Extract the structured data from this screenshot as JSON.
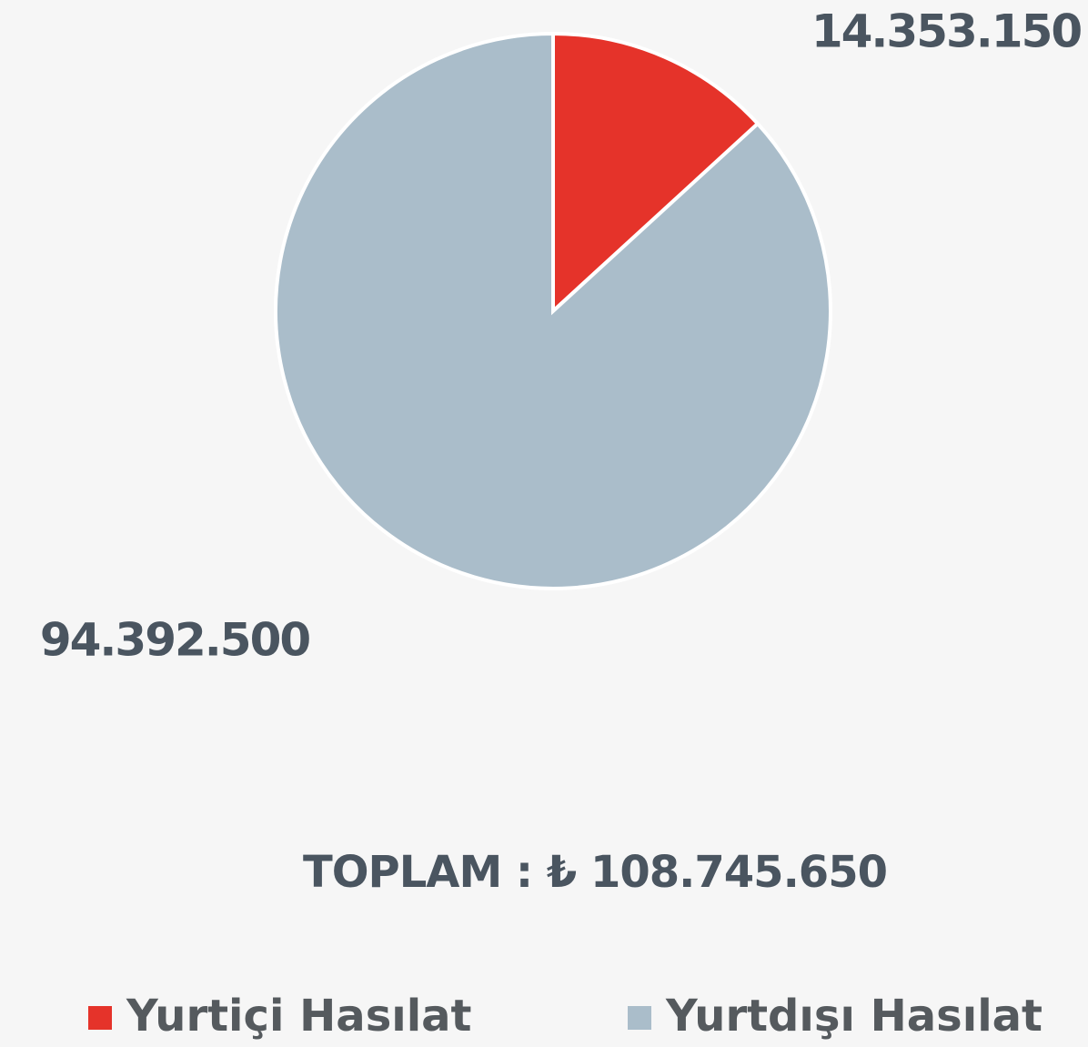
{
  "chart_data": {
    "type": "pie",
    "categories": [
      "Yurtiçi Hasılat",
      "Yurtdışı Hasılat"
    ],
    "values": [
      14353150,
      94392500
    ],
    "value_labels": [
      "14.353.150",
      "94.392.500"
    ],
    "colors": [
      "#e5332a",
      "#aabdca"
    ],
    "annotation": "TOPLAM :  ₺ 108.745.650",
    "legend": "bottom"
  }
}
